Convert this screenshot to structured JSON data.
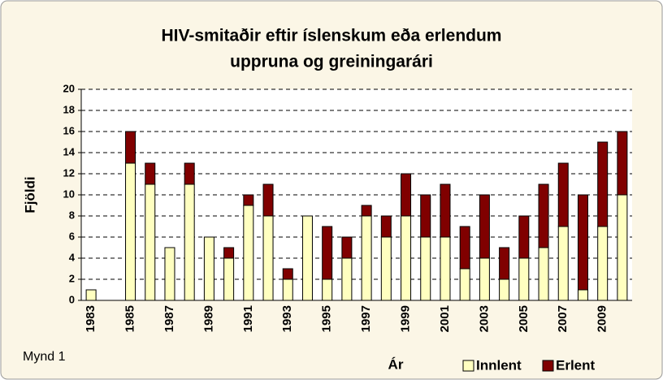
{
  "chart_data": {
    "type": "stacked_bar",
    "title": [
      "HIV-smitaðir eftir íslenskum eða erlendum",
      "uppruna  og greiningarári"
    ],
    "x_label": "Ár",
    "y_label": "Fjöldi",
    "annotation": "Mynd 1",
    "categories": [
      "1983",
      null,
      "1985",
      null,
      "1987",
      null,
      "1989",
      null,
      "1991",
      null,
      "1993",
      null,
      "1995",
      null,
      "1997",
      null,
      "1999",
      null,
      "2001",
      null,
      "2003",
      null,
      "2005",
      null,
      "2007",
      null,
      "2009",
      null
    ],
    "series": [
      {
        "name": "Innlent",
        "color": "#ffffc0",
        "values": [
          1,
          0,
          13,
          11,
          5,
          11,
          6,
          4,
          9,
          8,
          2,
          8,
          2,
          4,
          8,
          6,
          8,
          6,
          6,
          3,
          4,
          2,
          4,
          5,
          7,
          1,
          7,
          10
        ]
      },
      {
        "name": "Erlent",
        "color": "#800000",
        "values": [
          0,
          0,
          3,
          2,
          0,
          2,
          0,
          1,
          1,
          3,
          1,
          0,
          5,
          2,
          1,
          2,
          4,
          4,
          5,
          4,
          6,
          3,
          4,
          6,
          6,
          9,
          8,
          6
        ]
      }
    ],
    "ylim": [
      0,
      20
    ],
    "yticks": [
      0,
      2,
      4,
      6,
      8,
      10,
      12,
      14,
      16,
      18,
      20
    ],
    "grid": true,
    "legend": "bottom-right"
  }
}
